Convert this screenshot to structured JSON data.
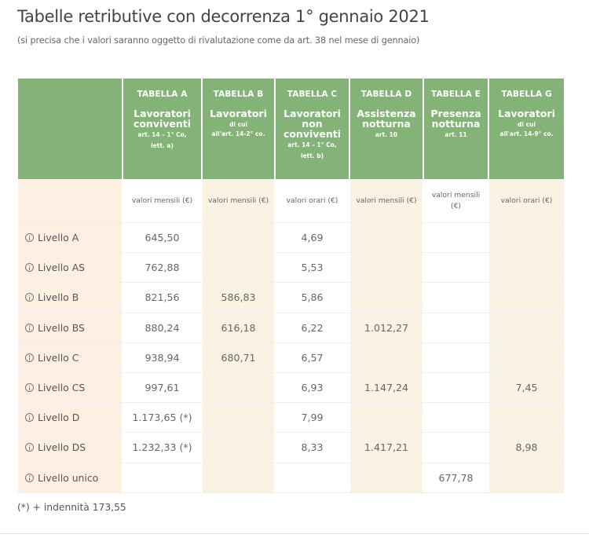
{
  "page": {
    "title": "Tabelle retributive con decorrenza 1° gennaio 2021",
    "subtitle": "(si precisa che i valori saranno oggetto di rivalutazione come da art. 38 nel mese di gennaio)"
  },
  "colors": {
    "header_green": "#84b377",
    "label_column": "#fdf0e2",
    "tinted_column": "#faf2e3",
    "plain_column": "#ffffff"
  },
  "table": {
    "columns": [
      {
        "code": "TABELLA A",
        "title_lines": [
          "Lavoratori",
          "conviventi"
        ],
        "note_lines": [
          "art. 14 – 1° Co,",
          "lett. a)"
        ],
        "unit": "valori mensili (€)",
        "tinted": false
      },
      {
        "code": "TABELLA B",
        "title_lines": [
          "Lavoratori"
        ],
        "note_lines": [
          "di cui",
          "all'art. 14-2° co."
        ],
        "unit": "valori mensili (€)",
        "tinted": true
      },
      {
        "code": "TABELLA C",
        "title_lines": [
          "Lavoratori",
          "non",
          "conviventi"
        ],
        "note_lines": [
          "art. 14 – 1° Co,",
          "lett. b)"
        ],
        "unit": "valori orari (€)",
        "tinted": false
      },
      {
        "code": "TABELLA D",
        "title_lines": [
          "Assistenza",
          "notturna"
        ],
        "note_lines": [
          "art. 10"
        ],
        "unit": "valori mensili (€)",
        "tinted": true
      },
      {
        "code": "TABELLA E",
        "title_lines": [
          "Presenza",
          "notturna"
        ],
        "note_lines": [
          "art. 11"
        ],
        "unit": "valori mensili (€)",
        "tinted": false
      },
      {
        "code": "TABELLA G",
        "title_lines": [
          "Lavoratori"
        ],
        "note_lines": [
          "di cui",
          "all'art. 14-9° co."
        ],
        "unit": "valori orari (€)",
        "tinted": true
      }
    ],
    "rows": [
      {
        "level": "Livello A",
        "values": [
          "645,50",
          "",
          "4,69",
          "",
          "",
          ""
        ]
      },
      {
        "level": "Livello AS",
        "values": [
          "762,88",
          "",
          "5,53",
          "",
          "",
          ""
        ]
      },
      {
        "level": "Livello B",
        "values": [
          "821,56",
          "586,83",
          "5,86",
          "",
          "",
          ""
        ]
      },
      {
        "level": "Livello BS",
        "values": [
          "880,24",
          "616,18",
          "6,22",
          "1.012,27",
          "",
          ""
        ]
      },
      {
        "level": "Livello C",
        "values": [
          "938,94",
          "680,71",
          "6,57",
          "",
          "",
          ""
        ]
      },
      {
        "level": "Livello CS",
        "values": [
          "997,61",
          "",
          "6,93",
          "1.147,24",
          "",
          "7,45"
        ]
      },
      {
        "level": "Livello D",
        "values": [
          "1.173,65 (*)",
          "",
          "7,99",
          "",
          "",
          ""
        ]
      },
      {
        "level": "Livello DS",
        "values": [
          "1.232,33 (*)",
          "",
          "8,33",
          "1.417,21",
          "",
          "8,98"
        ]
      },
      {
        "level": "Livello unico",
        "values": [
          "",
          "",
          "",
          "",
          "677,78",
          ""
        ]
      }
    ],
    "row_icon": "info-circle-icon"
  },
  "footnote": "(*) + indennità 173,55"
}
